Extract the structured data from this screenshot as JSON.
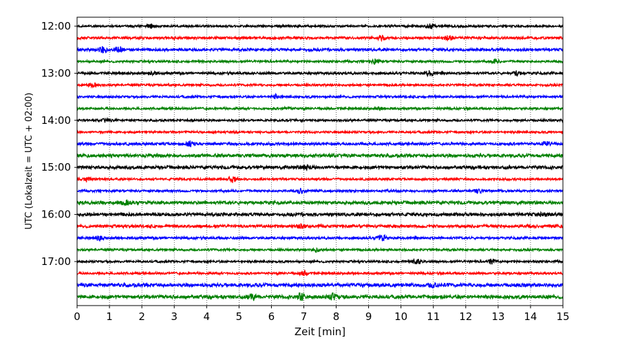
{
  "chart_data": {
    "type": "line",
    "title": "",
    "xlabel": "Zeit  [min]",
    "ylabel": "UTC (Lokalzeit = UTC + 02:00)",
    "xlim": [
      0,
      15
    ],
    "x_ticks": [
      "0",
      "1",
      "2",
      "3",
      "4",
      "5",
      "6",
      "7",
      "8",
      "9",
      "10",
      "11",
      "12",
      "13",
      "14",
      "15"
    ],
    "y_ticks": [
      "12:00",
      "13:00",
      "14:00",
      "15:00",
      "16:00",
      "17:00"
    ],
    "grid": "vertical dotted at each minute",
    "trace_interval_min": 15,
    "colors": [
      "#000000",
      "#ff0000",
      "#0000ff",
      "#008000"
    ],
    "traces": [
      {
        "start": "12:00",
        "noise": 1.6,
        "events": [
          [
            2.3,
            3
          ],
          [
            10.9,
            3
          ]
        ]
      },
      {
        "start": "12:15",
        "noise": 1.8,
        "events": [
          [
            11.5,
            3
          ],
          [
            9.4,
            2.5
          ]
        ]
      },
      {
        "start": "12:30",
        "noise": 2.0,
        "events": [
          [
            0.8,
            5
          ],
          [
            1.3,
            4
          ]
        ]
      },
      {
        "start": "12:45",
        "noise": 1.6,
        "events": [
          [
            9.2,
            3.5
          ],
          [
            12.9,
            3
          ]
        ]
      },
      {
        "start": "13:00",
        "noise": 1.8,
        "events": [
          [
            2.3,
            3
          ],
          [
            10.9,
            4
          ],
          [
            13.6,
            3.5
          ]
        ]
      },
      {
        "start": "13:15",
        "noise": 1.6,
        "events": [
          [
            0.5,
            3.5
          ]
        ]
      },
      {
        "start": "13:30",
        "noise": 1.7,
        "events": [
          [
            6.1,
            2.5
          ]
        ]
      },
      {
        "start": "13:45",
        "noise": 1.6,
        "events": [
          [
            6.5,
            2.5
          ],
          [
            9.4,
            2.5
          ]
        ]
      },
      {
        "start": "14:00",
        "noise": 1.6,
        "events": [
          [
            0.9,
            2.5
          ]
        ]
      },
      {
        "start": "14:15",
        "noise": 1.6,
        "events": []
      },
      {
        "start": "14:30",
        "noise": 2.0,
        "events": [
          [
            3.5,
            3.5
          ],
          [
            14.5,
            3
          ]
        ]
      },
      {
        "start": "14:45",
        "noise": 2.4,
        "events": []
      },
      {
        "start": "15:00",
        "noise": 2.4,
        "events": [
          [
            7.1,
            3
          ]
        ]
      },
      {
        "start": "15:15",
        "noise": 1.6,
        "events": [
          [
            0.3,
            4
          ],
          [
            4.8,
            4
          ]
        ]
      },
      {
        "start": "15:30",
        "noise": 1.6,
        "events": [
          [
            6.9,
            4
          ],
          [
            12.4,
            3
          ]
        ]
      },
      {
        "start": "15:45",
        "noise": 2.4,
        "events": [
          [
            1.5,
            3
          ]
        ]
      },
      {
        "start": "16:00",
        "noise": 2.4,
        "events": [
          [
            14.4,
            3
          ]
        ]
      },
      {
        "start": "16:15",
        "noise": 2.2,
        "events": [
          [
            6.9,
            3
          ]
        ]
      },
      {
        "start": "16:30",
        "noise": 1.8,
        "events": [
          [
            9.4,
            5
          ],
          [
            0.7,
            3
          ]
        ]
      },
      {
        "start": "16:45",
        "noise": 1.6,
        "events": [
          [
            7.4,
            3
          ]
        ]
      },
      {
        "start": "17:00",
        "noise": 1.6,
        "events": [
          [
            10.5,
            4.5
          ],
          [
            12.8,
            3.5
          ]
        ]
      },
      {
        "start": "17:15",
        "noise": 1.6,
        "events": [
          [
            7.0,
            3
          ]
        ]
      },
      {
        "start": "17:30",
        "noise": 2.6,
        "events": [
          [
            11,
            3
          ]
        ]
      },
      {
        "start": "17:45",
        "noise": 2.6,
        "events": [
          [
            5.4,
            4.5
          ],
          [
            6.9,
            5
          ],
          [
            7.9,
            4
          ]
        ]
      }
    ]
  }
}
